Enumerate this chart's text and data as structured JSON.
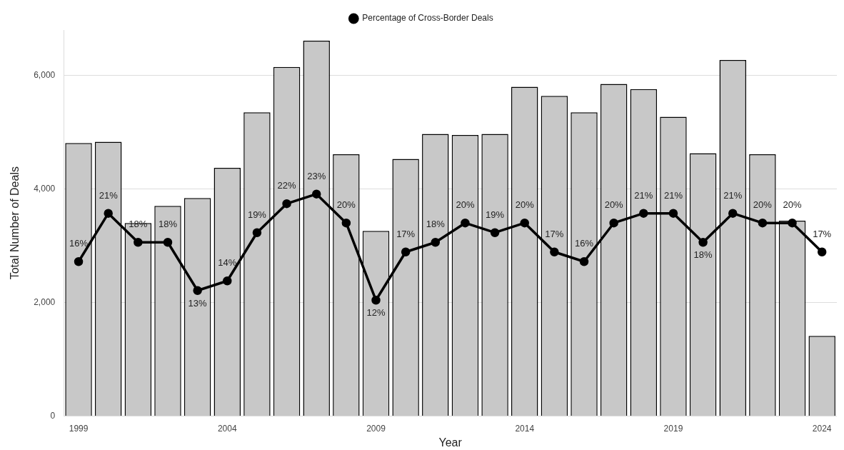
{
  "chart_data": {
    "type": "bar",
    "xlabel": "Year",
    "ylabel": "Total Number of Deals",
    "categories": [
      "1999",
      null,
      null,
      null,
      null,
      "2004",
      null,
      null,
      null,
      null,
      "2009",
      null,
      null,
      null,
      null,
      "2014",
      null,
      null,
      null,
      null,
      "2019",
      null,
      null,
      null,
      null,
      "2024"
    ],
    "series": [
      {
        "color": "#c8c8c8",
        "values": [
          4810,
          4830,
          3400,
          3700,
          3840,
          4370,
          5350,
          6150,
          6610,
          4610,
          3260,
          4530,
          4970,
          4950,
          4970,
          5800,
          5640,
          5350,
          5850,
          5760,
          5270,
          4630,
          6270,
          4610,
          3440,
          1410
        ]
      },
      {
        "type": "line",
        "name": "Percentage of Cross-Border Deals",
        "color": "#000000",
        "axis": "y2",
        "values": [
          16,
          21,
          18,
          18,
          13,
          14,
          19,
          22,
          23,
          20,
          12,
          17,
          18,
          20,
          19,
          20,
          17,
          16,
          20,
          21,
          21,
          18,
          21,
          20,
          20,
          17
        ],
        "value_labels": [
          "16%",
          "21%",
          "18%",
          "18%",
          "13%",
          "14%",
          "19%",
          "22%",
          "23%",
          "20%",
          "12%",
          "17%",
          "18%",
          "20%",
          "19%",
          "20%",
          "17%",
          "16%",
          "20%",
          "21%",
          "21%",
          "18%",
          "21%",
          "20%",
          "20%",
          "17%"
        ]
      }
    ],
    "ylim": [
      0,
      6800
    ],
    "yticks": [
      0,
      {
        "value": 2000,
        "label": "2,000"
      },
      {
        "value": 4000,
        "label": "4,000"
      },
      {
        "value": 6000,
        "label": "6,000"
      }
    ],
    "grid": "y",
    "legend": "top",
    "marker": "circle",
    "line_style": "solid"
  }
}
